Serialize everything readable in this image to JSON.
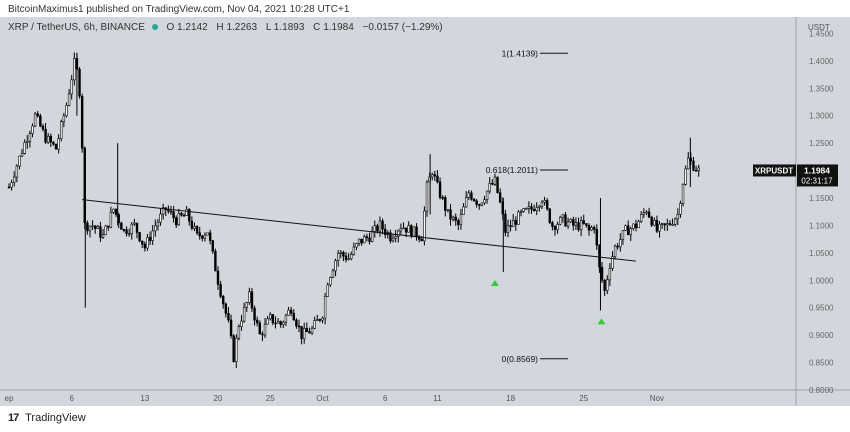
{
  "header_text": "BitcoinMaximus1 published on TradingView.com, Nov 04, 2021 10:28 UTC+1",
  "symbol_line": {
    "symbol": "XRP / TetherUS, 6h, BINANCE",
    "open_label": "O",
    "open": "1.2142",
    "high_label": "H",
    "high": "1.2263",
    "low_label": "L",
    "low": "1.1893",
    "close_label": "C",
    "close": "1.1984",
    "change": "−0.0157 (−1.29%)"
  },
  "footer_brand": "TradingView",
  "colors": {
    "background": "#d4d6de",
    "candle": "#000000",
    "marker": "#33cc33",
    "price_tag": "#111111"
  },
  "chart_data": {
    "type": "candlestick",
    "title": "",
    "xlabel": "",
    "ylabel": "",
    "currency_label": "USDT",
    "ylim": [
      0.8,
      1.48
    ],
    "y_ticks": [
      "1.4500",
      "1.4000",
      "1.3500",
      "1.3000",
      "1.2500",
      "1.2000",
      "1.1500",
      "1.1000",
      "1.0500",
      "1.0000",
      "0.9500",
      "0.9000",
      "0.8500",
      "0.8000"
    ],
    "x_ticks": [
      {
        "label": "ep",
        "day": 0
      },
      {
        "label": "6",
        "day": 6
      },
      {
        "label": "13",
        "day": 13
      },
      {
        "label": "20",
        "day": 20
      },
      {
        "label": "25",
        "day": 25
      },
      {
        "label": "Oct",
        "day": 30
      },
      {
        "label": "6",
        "day": 36
      },
      {
        "label": "11",
        "day": 41
      },
      {
        "label": "18",
        "day": 48
      },
      {
        "label": "25",
        "day": 55
      },
      {
        "label": "Nov",
        "day": 62
      }
    ],
    "current_price": {
      "symbol": "XRPUSDT",
      "price": "1.1984",
      "countdown": "02:31:17"
    },
    "fib_levels": [
      {
        "label": "1(1.4139)",
        "value": 1.4139
      },
      {
        "label": "0.618(1.2011)",
        "value": 1.2011
      },
      {
        "label": "0(0.8569)",
        "value": 0.8569
      }
    ],
    "trendline": {
      "start": {
        "day": 7,
        "price": 1.147
      },
      "end": {
        "day": 60,
        "price": 1.035
      }
    },
    "markers": [
      {
        "day": 46.5,
        "price": 0.995
      },
      {
        "day": 56.7,
        "price": 0.925
      }
    ],
    "series_path": [
      [
        0,
        1.17
      ],
      [
        1.5,
        1.25
      ],
      [
        2.5,
        1.3
      ],
      [
        3.5,
        1.26
      ],
      [
        4.5,
        1.24
      ],
      [
        5.5,
        1.32
      ],
      [
        6.3,
        1.4
      ],
      [
        6.6,
        1.37
      ],
      [
        6.9,
        1.32
      ],
      [
        7.2,
        1.1
      ],
      [
        8,
        1.1
      ],
      [
        9,
        1.08
      ],
      [
        10,
        1.13
      ],
      [
        11,
        1.09
      ],
      [
        12,
        1.1
      ],
      [
        13,
        1.06
      ],
      [
        14,
        1.1
      ],
      [
        15,
        1.13
      ],
      [
        16,
        1.11
      ],
      [
        17,
        1.12
      ],
      [
        18,
        1.08
      ],
      [
        19,
        1.09
      ],
      [
        20,
        1.0
      ],
      [
        21,
        0.92
      ],
      [
        21.5,
        0.86
      ],
      [
        22,
        0.92
      ],
      [
        23,
        0.97
      ],
      [
        24,
        0.9
      ],
      [
        25,
        0.93
      ],
      [
        26,
        0.92
      ],
      [
        27,
        0.95
      ],
      [
        28,
        0.9
      ],
      [
        29,
        0.91
      ],
      [
        30,
        0.94
      ],
      [
        30.5,
        1.0
      ],
      [
        31.5,
        1.05
      ],
      [
        32.5,
        1.04
      ],
      [
        33.5,
        1.07
      ],
      [
        34.5,
        1.08
      ],
      [
        35.5,
        1.1
      ],
      [
        36.5,
        1.08
      ],
      [
        37.5,
        1.1
      ],
      [
        38.5,
        1.09
      ],
      [
        39.5,
        1.08
      ],
      [
        40,
        1.17
      ],
      [
        40.5,
        1.2
      ],
      [
        41,
        1.17
      ],
      [
        42,
        1.12
      ],
      [
        43,
        1.1
      ],
      [
        44,
        1.16
      ],
      [
        45,
        1.14
      ],
      [
        46,
        1.17
      ],
      [
        46.5,
        1.18
      ],
      [
        47,
        1.14
      ],
      [
        47.5,
        1.09
      ],
      [
        48,
        1.1
      ],
      [
        49,
        1.12
      ],
      [
        50,
        1.13
      ],
      [
        51,
        1.15
      ],
      [
        52,
        1.1
      ],
      [
        53,
        1.11
      ],
      [
        54,
        1.1
      ],
      [
        55,
        1.1
      ],
      [
        55.5,
        1.09
      ],
      [
        56,
        1.1
      ],
      [
        56.5,
        1.02
      ],
      [
        57,
        0.98
      ],
      [
        57.5,
        1.03
      ],
      [
        58,
        1.06
      ],
      [
        59,
        1.09
      ],
      [
        60,
        1.1
      ],
      [
        61,
        1.13
      ],
      [
        62,
        1.09
      ],
      [
        63,
        1.1
      ],
      [
        64,
        1.12
      ],
      [
        64.5,
        1.18
      ],
      [
        65,
        1.22
      ],
      [
        65.5,
        1.21
      ],
      [
        66,
        1.2
      ]
    ]
  }
}
